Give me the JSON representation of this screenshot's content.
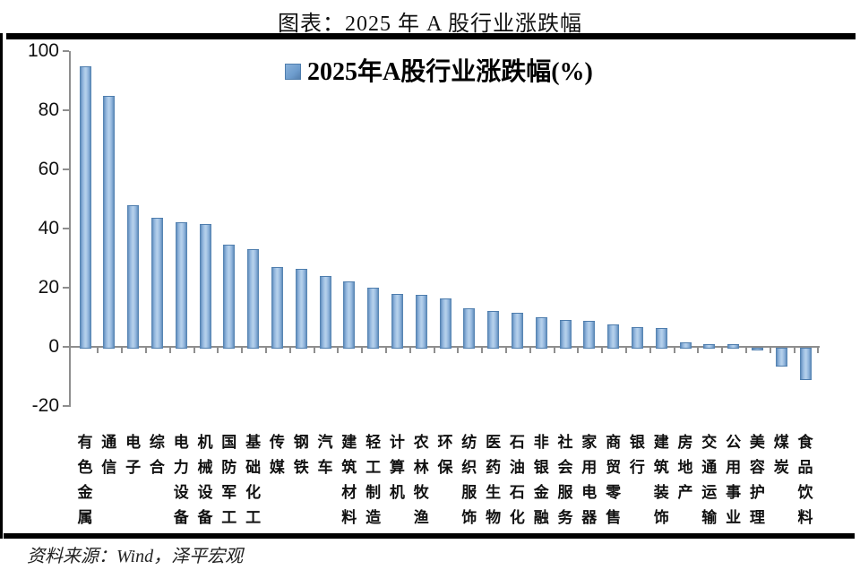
{
  "page": {
    "title": "图表：2025 年 A 股行业涨跌幅",
    "source": "资料来源：Wind，泽平宏观"
  },
  "chart_data": {
    "type": "bar",
    "title": "2025年A股行业涨跌幅(%)",
    "legend": {
      "label": "2025年A股行业涨跌幅(%)",
      "position": "top-center"
    },
    "categories": [
      "有色金属",
      "通信",
      "电子",
      "综合",
      "电力设备",
      "机械设备",
      "国防军工",
      "基础化工",
      "传媒",
      "钢铁",
      "汽车",
      "建筑材料",
      "轻工制造",
      "计算机",
      "农林牧渔",
      "环保",
      "纺织服饰",
      "医药生物",
      "石油石化",
      "非银金融",
      "社会服务",
      "家用电器",
      "商贸零售",
      "银行",
      "建筑装饰",
      "房地产",
      "交通运输",
      "公用事业",
      "美容护理",
      "煤炭",
      "食品饮料"
    ],
    "values": [
      95,
      85,
      48,
      43.5,
      42,
      41.5,
      34.5,
      33,
      27,
      26.5,
      24,
      22,
      20,
      18,
      17.5,
      16.5,
      13,
      12,
      11.5,
      10,
      9.2,
      8.7,
      7.7,
      6.8,
      6.3,
      1.6,
      1,
      0.8,
      -0.3,
      -5.8,
      -10.3
    ],
    "xlabel": "",
    "ylabel": "",
    "ylim": [
      -20,
      100
    ],
    "yticks": [
      100,
      80,
      60,
      40,
      20,
      0,
      -20
    ],
    "grid": false,
    "bar_color": "#7aa6d5",
    "bar_edge_color": "#4e7dad",
    "axis_color": "#8e8e8e"
  }
}
